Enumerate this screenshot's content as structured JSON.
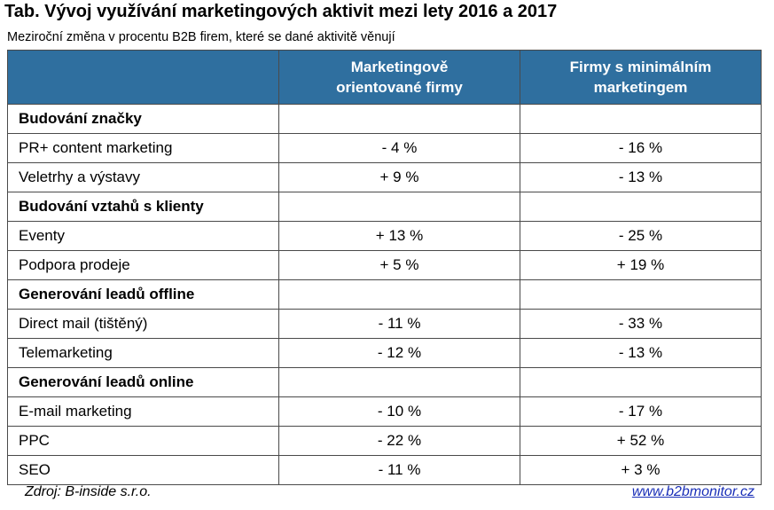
{
  "title": "Tab. Vývoj využívání marketingových aktivit mezi lety 2016 a 2017",
  "subtitle": "Meziroční změna v procentu B2B firem, které se dané aktivitě věnují",
  "columns": {
    "activity": "",
    "col1_line1": "Marketingově",
    "col1_line2": "orientované  firmy",
    "col2_line1": "Firmy s minimálním",
    "col2_line2": "marketingem"
  },
  "rows": [
    {
      "type": "section",
      "label": "Budování  značky",
      "v1": "",
      "v2": ""
    },
    {
      "type": "item",
      "label": "PR+ content marketing",
      "v1": "- 4 %",
      "v2": "- 16 %"
    },
    {
      "type": "item",
      "label": "Veletrhy  a výstavy",
      "v1": "+ 9 %",
      "v2": "- 13 %"
    },
    {
      "type": "section",
      "label": "Budování  vztahů s klienty",
      "v1": "",
      "v2": ""
    },
    {
      "type": "item",
      "label": "Eventy",
      "v1": "+ 13 %",
      "v2": "- 25 %"
    },
    {
      "type": "item",
      "label": "Podpora prodeje",
      "v1": "+ 5 %",
      "v2": "+ 19 %"
    },
    {
      "type": "section",
      "label": "Generování leadů offline",
      "v1": "",
      "v2": ""
    },
    {
      "type": "item",
      "label": "Direct mail (tištěný)",
      "v1": "- 11 %",
      "v2": "- 33 %"
    },
    {
      "type": "item",
      "label": "Telemarketing",
      "v1": "- 12 %",
      "v2": "- 13 %"
    },
    {
      "type": "section",
      "label": "Generování leadů online",
      "v1": "",
      "v2": ""
    },
    {
      "type": "item",
      "label": "E-mail marketing",
      "v1": "- 10 %",
      "v2": "- 17 %"
    },
    {
      "type": "item",
      "label": "PPC",
      "v1": "- 22 %",
      "v2": "+ 52 %"
    },
    {
      "type": "item",
      "label": "SEO",
      "v1": "- 11 %",
      "v2": "+ 3 %"
    }
  ],
  "source": "Zdroj: B-inside s.r.o.",
  "website": "www.b2bmonitor.cz",
  "colors": {
    "header_bg": "#2f6f9f",
    "header_text": "#ffffff",
    "link": "#1a2fb8"
  }
}
